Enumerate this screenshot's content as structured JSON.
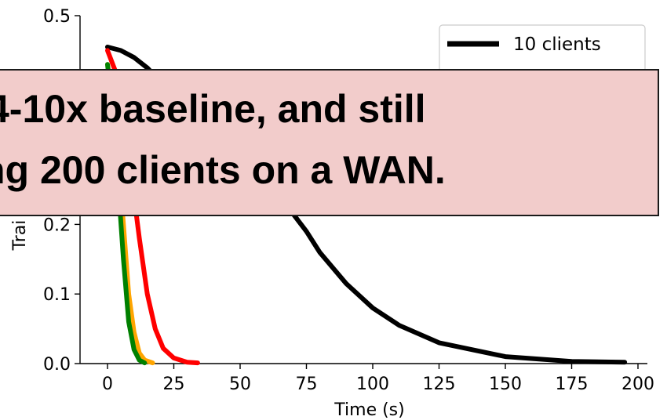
{
  "chart_data": {
    "type": "line",
    "xlabel": "Time (s)",
    "ylabel": "Training Loss",
    "xlim": [
      -5,
      200
    ],
    "ylim": [
      0,
      0.5
    ],
    "x_ticks": [
      0,
      25,
      50,
      75,
      100,
      125,
      150,
      175,
      200
    ],
    "y_ticks": [
      0.0,
      0.1,
      0.2,
      0.5
    ],
    "y_tick_labels": [
      "0.0",
      "0.1",
      "0.2",
      "0.5"
    ],
    "x_tick_labels": [
      "0",
      "25",
      "50",
      "75",
      "100",
      "125",
      "150",
      "175",
      "200"
    ],
    "legend_position": "top-right",
    "grid": false,
    "series": [
      {
        "name": "10 clients",
        "color": "#000000",
        "x": [
          0,
          5,
          10,
          15,
          20,
          30,
          40,
          50,
          60,
          65,
          70,
          75,
          80,
          90,
          100,
          110,
          125,
          150,
          175,
          195
        ],
        "y": [
          0.455,
          0.45,
          0.44,
          0.425,
          0.405,
          0.365,
          0.33,
          0.3,
          0.26,
          0.24,
          0.215,
          0.19,
          0.16,
          0.115,
          0.08,
          0.055,
          0.03,
          0.01,
          0.003,
          0.002
        ]
      },
      {
        "name": "",
        "color": "#ff0000",
        "x": [
          0,
          3,
          6,
          9,
          12,
          15,
          18,
          21,
          25,
          30,
          34
        ],
        "y": [
          0.45,
          0.42,
          0.36,
          0.27,
          0.18,
          0.1,
          0.05,
          0.022,
          0.008,
          0.002,
          0.001
        ]
      },
      {
        "name": "",
        "color": "#ffa500",
        "x": [
          0,
          2,
          4,
          6,
          8,
          10,
          12,
          14,
          17
        ],
        "y": [
          0.43,
          0.38,
          0.3,
          0.2,
          0.1,
          0.045,
          0.015,
          0.005,
          0.001
        ]
      },
      {
        "name": "",
        "color": "#008000",
        "x": [
          0,
          2,
          4,
          6,
          8,
          10,
          12,
          14
        ],
        "y": [
          0.43,
          0.36,
          0.26,
          0.15,
          0.06,
          0.02,
          0.005,
          0.001
        ]
      }
    ]
  },
  "callout": {
    "line1": "4-10x baseline, and still",
    "line2": "ng 200 clients on a WAN."
  },
  "ylabel_visible": "Trai",
  "legend_visible": "10 clients"
}
